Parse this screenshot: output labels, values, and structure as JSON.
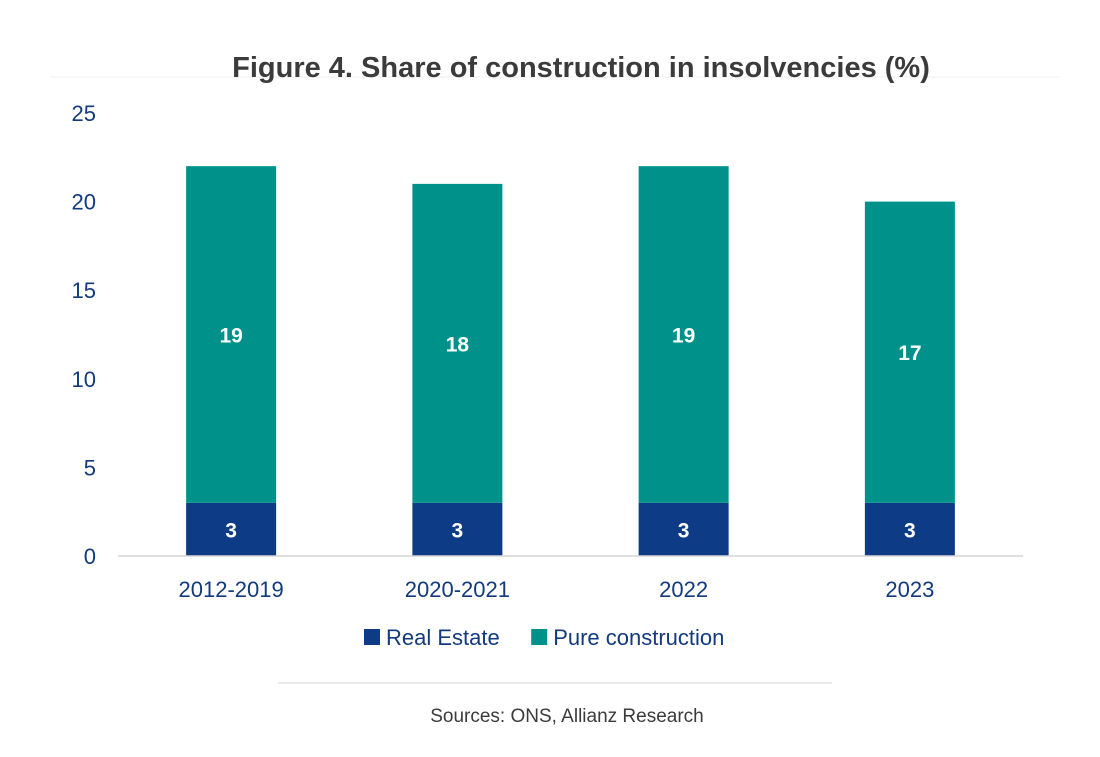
{
  "chart_data": {
    "type": "bar",
    "stacked": true,
    "title": "Figure 4. Share of construction in insolvencies (%)",
    "categories": [
      "2012-2019",
      "2020-2021",
      "2022",
      "2023"
    ],
    "series": [
      {
        "name": "Real Estate",
        "values": [
          3,
          3,
          3,
          3
        ],
        "color": "#0d3b85"
      },
      {
        "name": "Pure construction",
        "values": [
          19,
          18,
          19,
          17
        ],
        "color": "#00918a"
      }
    ],
    "ylim": [
      0,
      25
    ],
    "yticks": [
      0,
      5,
      10,
      15,
      20,
      25
    ],
    "xlabel": "",
    "ylabel": "",
    "grid": false,
    "legend_position": "bottom",
    "data_labels": true
  },
  "source_note": "Sources: ONS, Allianz Research",
  "colors": {
    "axis_text": "#123a7c",
    "title_text": "#3b3b3b",
    "data_label_text": "#ffffff",
    "axis_line": "#d6d6d6",
    "source_text": "#3b3b3b"
  }
}
